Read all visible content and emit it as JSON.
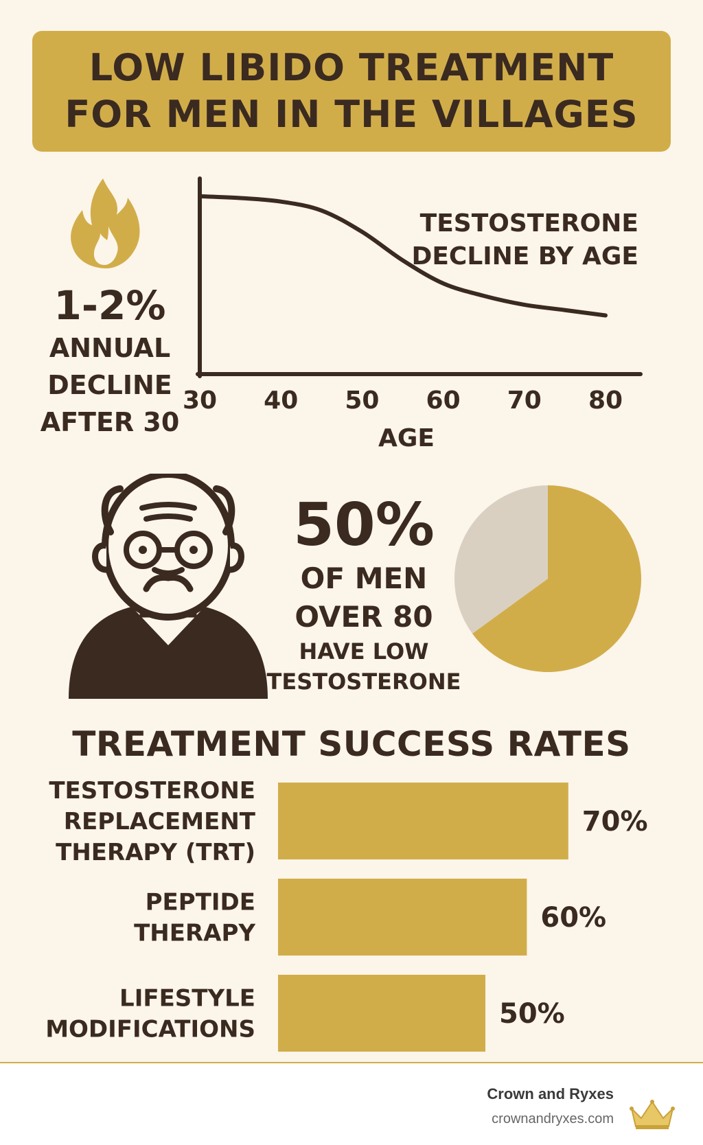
{
  "title": {
    "line1": "LOW LIBIDO TREATMENT",
    "line2": "FOR MEN IN THE VILLAGES"
  },
  "decline_stat": {
    "value": "1-2%",
    "line1": "ANNUAL",
    "line2": "DECLINE",
    "line3": "AFTER 30"
  },
  "older_men_stat": {
    "value": "50%",
    "line1": "OF MEN",
    "line2": "OVER 80",
    "line3": "HAVE LOW",
    "line4": "TESTOSTERONE"
  },
  "section_title": "TREATMENT SUCCESS RATES",
  "colors": {
    "gold": "#D1AD4A",
    "dark_brown": "#3A2A20",
    "gray": "#D9D0C1",
    "background": "#FCF5EA"
  },
  "icons": [
    "flame-icon",
    "elderly-man-icon",
    "crown-icon"
  ],
  "chart_data": [
    {
      "type": "line",
      "title_lines": [
        "TESTOSTERONE",
        "DECLINE BY AGE"
      ],
      "xlabel": "AGE",
      "ylabel": "",
      "x": [
        30,
        35,
        40,
        45,
        50,
        55,
        60,
        65,
        70,
        75,
        80
      ],
      "y": [
        100,
        99,
        97,
        92,
        80,
        64,
        51,
        44,
        39,
        36,
        33
      ],
      "xticks": [
        "30",
        "40",
        "50",
        "60",
        "70",
        "80"
      ],
      "xlim": [
        30,
        80
      ],
      "ylim": [
        0,
        110
      ],
      "grid": false
    },
    {
      "type": "pie",
      "slices": [
        {
          "label": "gold",
          "value": 65,
          "color": "#D1AD4A"
        },
        {
          "label": "gray",
          "value": 35,
          "color": "#D9D0C1"
        }
      ]
    },
    {
      "type": "bar",
      "orientation": "horizontal",
      "categories": [
        [
          "TESTOSTERONE",
          "REPLACEMENT",
          "THERAPY (TRT)"
        ],
        [
          "PEPTIDE",
          "THERAPY"
        ],
        [
          "LIFESTYLE",
          "MODIFICATIONS"
        ]
      ],
      "values": [
        70,
        60,
        50
      ],
      "value_labels": [
        "70%",
        "60%",
        "50%"
      ],
      "xlim": [
        0,
        100
      ]
    }
  ],
  "footer": {
    "company": "Crown and Ryxes",
    "url": "crownandryxes.com"
  }
}
